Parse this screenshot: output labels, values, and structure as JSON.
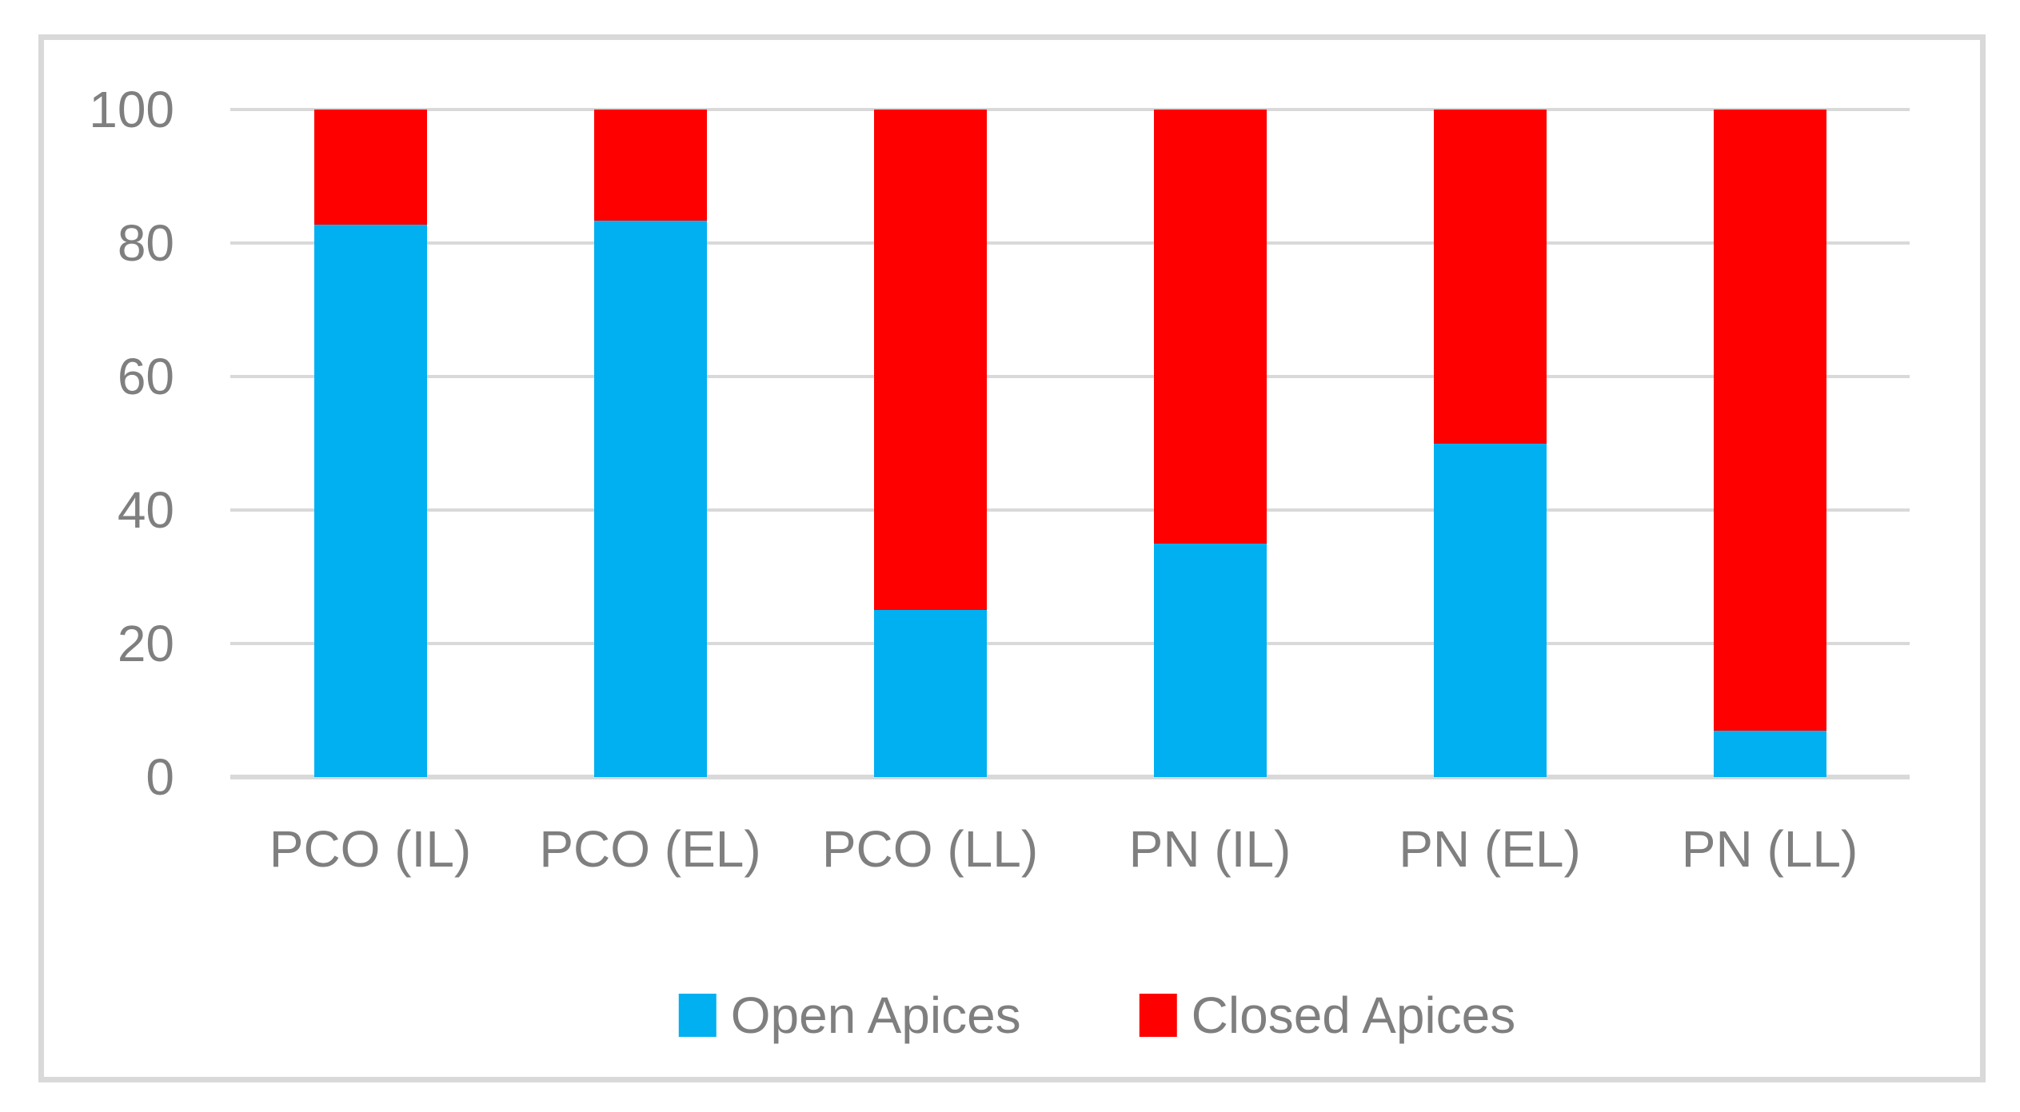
{
  "chart_data": {
    "type": "bar",
    "stacked": true,
    "title": "",
    "xlabel": "",
    "ylabel": "",
    "categories": [
      "PCO (IL)",
      "PCO (EL)",
      "PCO (LL)",
      "PN (IL)",
      "PN (EL)",
      "PN (LL)"
    ],
    "series": [
      {
        "name": "Open Apices",
        "color": "#00B0F0",
        "values": [
          82.8,
          83.3,
          25,
          35,
          50,
          7
        ]
      },
      {
        "name": "Closed Apices",
        "color": "#FF0000",
        "values": [
          17.2,
          16.7,
          75,
          65,
          50,
          93
        ]
      }
    ],
    "ylim": [
      0,
      100
    ],
    "yticks": [
      0,
      20,
      40,
      60,
      80,
      100
    ],
    "grid": true,
    "legend_position": "bottom"
  },
  "colors": {
    "background": "#FFFFFF",
    "frame_border": "#D9D9D9",
    "gridline": "#D9D9D9",
    "axis_line": "#D9D9D9",
    "axis_text": "#7F7F7F",
    "legend_text": "#7F7F7F"
  }
}
